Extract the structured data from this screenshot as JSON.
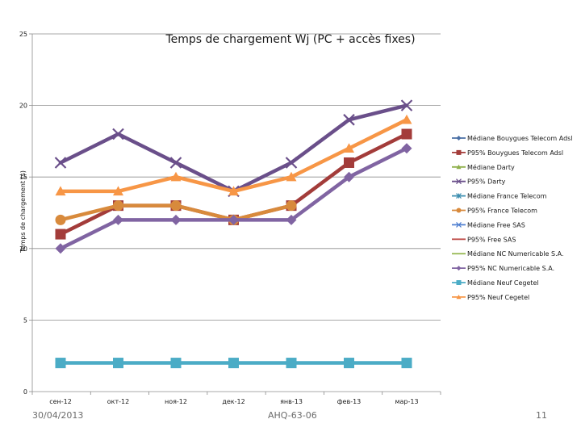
{
  "chart_data": {
    "type": "line",
    "title": "Temps de chargement Wj (PC + accès fixes)",
    "xlabel": "",
    "ylabel": "Temps de chargement (s)",
    "ylim": [
      0,
      25
    ],
    "yticks": [
      0,
      5,
      10,
      15,
      20,
      25
    ],
    "grid": true,
    "legend_position": "right",
    "categories": [
      "сен-12",
      "окт-12",
      "ноя-12",
      "дек-12",
      "янв-13",
      "фев-13",
      "мар-13"
    ],
    "series": [
      {
        "name": "Médiane Bouygues Telecom Adsl",
        "color": "#4a6fa5",
        "marker": "diamond",
        "values": [
          null,
          null,
          null,
          null,
          null,
          null,
          null
        ]
      },
      {
        "name": "P95% Bouygues Telecom Adsl",
        "color": "#a33c3a",
        "marker": "square",
        "values": [
          11,
          13,
          13,
          12,
          13,
          16,
          18
        ]
      },
      {
        "name": "Médiane Darty",
        "color": "#8fb04c",
        "marker": "triangle",
        "values": [
          null,
          null,
          null,
          null,
          null,
          null,
          null
        ]
      },
      {
        "name": "P95% Darty",
        "color": "#6a4f8a",
        "marker": "x",
        "values": [
          16,
          18,
          16,
          14,
          16,
          19,
          20
        ]
      },
      {
        "name": "Médiane France Telecom",
        "color": "#3e8fb0",
        "marker": "star",
        "values": [
          null,
          null,
          null,
          null,
          null,
          null,
          null
        ]
      },
      {
        "name": "P95% France Telecom",
        "color": "#d88a3c",
        "marker": "circle",
        "values": [
          12,
          13,
          13,
          12,
          13,
          null,
          null
        ]
      },
      {
        "name": "Médiane Free SAS",
        "color": "#4f7fd0",
        "marker": "x",
        "values": [
          null,
          null,
          null,
          null,
          null,
          null,
          null
        ]
      },
      {
        "name": "P95% Free SAS",
        "color": "#c0504d",
        "marker": "none",
        "values": [
          null,
          null,
          null,
          null,
          null,
          null,
          null
        ]
      },
      {
        "name": "Médiane NC Numericable S.A.",
        "color": "#9bbb59",
        "marker": "none",
        "values": [
          null,
          null,
          null,
          null,
          null,
          null,
          null
        ]
      },
      {
        "name": "P95% NC Numericable S.A.",
        "color": "#8064a2",
        "marker": "diamond",
        "values": [
          10,
          12,
          12,
          12,
          12,
          15,
          17
        ]
      },
      {
        "name": "Médiane Neuf Cegetel",
        "color": "#4bacc6",
        "marker": "square",
        "values": [
          2,
          2,
          2,
          2,
          2,
          2,
          2
        ]
      },
      {
        "name": "P95% Neuf Cegetel",
        "color": "#f79646",
        "marker": "triangle",
        "values": [
          14,
          14,
          15,
          14,
          15,
          17,
          19
        ]
      }
    ]
  },
  "footer": {
    "date": "30/04/2013",
    "reference": "AHQ-63-06",
    "page_number": "11"
  }
}
